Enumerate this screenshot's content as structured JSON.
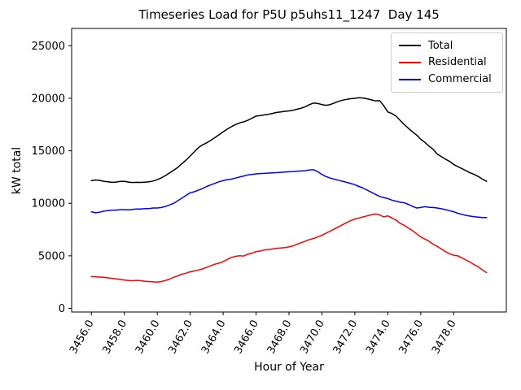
{
  "figure": {
    "background": "#ffffff"
  },
  "chart_data": {
    "type": "line",
    "title": "Timeseries Load for P5U p5uhs11_1247  Day 145",
    "xlabel": "Hour of Year",
    "ylabel": "kW total",
    "grid": false,
    "legend_position": "upper right",
    "xlim": [
      3454.8,
      3481.2
    ],
    "ylim": [
      -350,
      26650
    ],
    "xticks": [
      3456,
      3458,
      3460,
      3462,
      3464,
      3466,
      3468,
      3470,
      3472,
      3474,
      3476,
      3478
    ],
    "xtick_labels": [
      "3456.0",
      "3458.0",
      "3460.0",
      "3462.0",
      "3464.0",
      "3466.0",
      "3468.0",
      "3470.0",
      "3472.0",
      "3474.0",
      "3476.0",
      "3478.0"
    ],
    "yticks": [
      0,
      5000,
      10000,
      15000,
      20000,
      25000
    ],
    "ytick_labels": [
      "0",
      "5000",
      "10000",
      "15000",
      "20000",
      "25000"
    ],
    "x": [
      3456,
      3456.25,
      3456.5,
      3456.75,
      3457,
      3457.25,
      3457.5,
      3457.75,
      3458,
      3458.25,
      3458.5,
      3458.75,
      3459,
      3459.25,
      3459.5,
      3459.75,
      3460,
      3460.25,
      3460.5,
      3460.75,
      3461,
      3461.25,
      3461.5,
      3461.75,
      3462,
      3462.25,
      3462.5,
      3462.75,
      3463,
      3463.25,
      3463.5,
      3463.75,
      3464,
      3464.25,
      3464.5,
      3464.75,
      3465,
      3465.25,
      3465.5,
      3465.75,
      3466,
      3466.25,
      3466.5,
      3466.75,
      3467,
      3467.25,
      3467.5,
      3467.75,
      3468,
      3468.25,
      3468.5,
      3468.75,
      3469,
      3469.25,
      3469.5,
      3469.75,
      3470,
      3470.25,
      3470.5,
      3470.75,
      3471,
      3471.25,
      3471.5,
      3471.75,
      3472,
      3472.25,
      3472.5,
      3472.75,
      3473,
      3473.25,
      3473.5,
      3473.75,
      3474,
      3474.25,
      3474.5,
      3474.75,
      3475,
      3475.25,
      3475.5,
      3475.75,
      3476,
      3476.25,
      3476.5,
      3476.75,
      3477,
      3477.25,
      3477.5,
      3477.75,
      3478,
      3478.25,
      3478.5,
      3478.75,
      3479,
      3479.25,
      3479.5,
      3479.75,
      3480
    ],
    "series": [
      {
        "name": "Total",
        "color": "#000000",
        "values": [
          12150,
          12220,
          12180,
          12100,
          12050,
          12000,
          12020,
          12080,
          12100,
          12020,
          11980,
          12000,
          11990,
          12010,
          12040,
          12120,
          12250,
          12420,
          12650,
          12900,
          13150,
          13420,
          13780,
          14120,
          14500,
          14900,
          15300,
          15560,
          15760,
          16000,
          16250,
          16520,
          16800,
          17060,
          17300,
          17500,
          17650,
          17760,
          17900,
          18100,
          18300,
          18360,
          18420,
          18470,
          18560,
          18650,
          18700,
          18760,
          18800,
          18860,
          18960,
          19060,
          19200,
          19400,
          19550,
          19500,
          19400,
          19330,
          19400,
          19550,
          19700,
          19820,
          19900,
          19960,
          20000,
          20060,
          20030,
          19950,
          19850,
          19750,
          19780,
          19300,
          18700,
          18550,
          18300,
          17900,
          17500,
          17150,
          16800,
          16500,
          16100,
          15800,
          15450,
          15150,
          14700,
          14450,
          14200,
          14000,
          13700,
          13500,
          13300,
          13100,
          12900,
          12750,
          12550,
          12300,
          12100
        ]
      },
      {
        "name": "Residential",
        "color": "#ff0000",
        "values": [
          3020,
          3000,
          2980,
          2950,
          2900,
          2850,
          2800,
          2750,
          2700,
          2650,
          2620,
          2660,
          2630,
          2580,
          2550,
          2520,
          2500,
          2550,
          2650,
          2780,
          2950,
          3100,
          3250,
          3350,
          3480,
          3560,
          3650,
          3750,
          3900,
          4050,
          4200,
          4300,
          4450,
          4650,
          4850,
          4950,
          5000,
          4980,
          5150,
          5250,
          5400,
          5450,
          5550,
          5600,
          5650,
          5700,
          5750,
          5780,
          5850,
          5950,
          6100,
          6250,
          6400,
          6550,
          6650,
          6800,
          6950,
          7150,
          7350,
          7550,
          7750,
          7950,
          8150,
          8350,
          8500,
          8600,
          8700,
          8800,
          8900,
          8970,
          8900,
          8700,
          8800,
          8600,
          8400,
          8100,
          7900,
          7650,
          7400,
          7100,
          6800,
          6600,
          6400,
          6100,
          5900,
          5650,
          5400,
          5200,
          5050,
          5000,
          4800,
          4600,
          4400,
          4150,
          3950,
          3650,
          3400
        ]
      },
      {
        "name": "Commercial",
        "color": "#0000ff",
        "values": [
          9200,
          9100,
          9150,
          9250,
          9300,
          9350,
          9350,
          9400,
          9400,
          9380,
          9420,
          9450,
          9450,
          9500,
          9500,
          9550,
          9550,
          9600,
          9700,
          9850,
          10000,
          10250,
          10500,
          10750,
          11000,
          11100,
          11250,
          11400,
          11600,
          11750,
          11900,
          12050,
          12150,
          12250,
          12300,
          12400,
          12500,
          12600,
          12700,
          12750,
          12800,
          12830,
          12850,
          12880,
          12900,
          12920,
          12950,
          12980,
          13000,
          13020,
          13050,
          13080,
          13100,
          13180,
          13200,
          13000,
          12750,
          12550,
          12400,
          12300,
          12200,
          12100,
          12000,
          11880,
          11770,
          11600,
          11450,
          11250,
          11050,
          10850,
          10650,
          10550,
          10450,
          10300,
          10200,
          10100,
          10050,
          9900,
          9700,
          9550,
          9600,
          9680,
          9620,
          9600,
          9550,
          9480,
          9400,
          9300,
          9200,
          9050,
          8950,
          8850,
          8780,
          8720,
          8680,
          8650,
          8650
        ]
      }
    ]
  }
}
